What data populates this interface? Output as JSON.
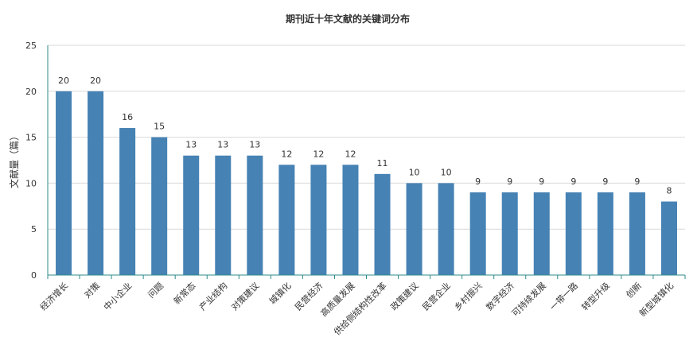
{
  "chart_data": {
    "type": "bar",
    "title": "期刊近十年文献的关键词分布",
    "ylabel": "文献量（篇）",
    "xlabel": "",
    "ylim": [
      0,
      25
    ],
    "yticks": [
      0,
      5,
      10,
      15,
      20,
      25
    ],
    "grid": true,
    "legend": "none",
    "bar_color": "#4682b4",
    "categories": [
      "经济增长",
      "对策",
      "中小企业",
      "问题",
      "新常态",
      "产业结构",
      "对策建议",
      "城镇化",
      "民营经济",
      "高质量发展",
      "供给侧结构性改革",
      "政策建议",
      "民营企业",
      "乡村振兴",
      "数字经济",
      "可持续发展",
      "一带一路",
      "转型升级",
      "创新",
      "新型城镇化"
    ],
    "values": [
      20,
      20,
      16,
      15,
      13,
      13,
      13,
      12,
      12,
      12,
      11,
      10,
      10,
      9,
      9,
      9,
      9,
      9,
      9,
      8
    ]
  }
}
